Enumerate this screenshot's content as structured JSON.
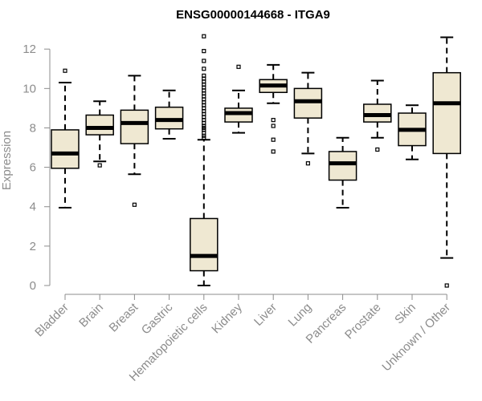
{
  "chart_data": {
    "type": "box",
    "title": "ENSG00000144668 - ITGA9",
    "ylabel": "Expression",
    "xlabel": "",
    "ylim": [
      0,
      12.7
    ],
    "yticks": [
      0,
      2,
      4,
      6,
      8,
      10,
      12
    ],
    "grid": false,
    "legend": "none",
    "colors": {
      "box_fill": "#efe8d2",
      "stroke": "#000000",
      "axis": "#8c8c8c",
      "title": "#000000"
    },
    "categories": [
      "Bladder",
      "Brain",
      "Breast",
      "Gastric",
      "Hematopoietic cells",
      "Kidney",
      "Liver",
      "Lung",
      "Pancreas",
      "Prostate",
      "Skin",
      "Unknown / Other"
    ],
    "boxes": [
      {
        "q1": 5.95,
        "median": 6.7,
        "q3": 7.9,
        "whisker_low": 3.95,
        "whisker_high": 10.3,
        "outliers": [
          10.9
        ]
      },
      {
        "q1": 7.65,
        "median": 8.0,
        "q3": 8.65,
        "whisker_low": 6.3,
        "whisker_high": 9.35,
        "outliers": [
          6.1
        ]
      },
      {
        "q1": 7.2,
        "median": 8.25,
        "q3": 8.9,
        "whisker_low": 5.65,
        "whisker_high": 10.65,
        "outliers": [
          4.1
        ]
      },
      {
        "q1": 7.95,
        "median": 8.4,
        "q3": 9.05,
        "whisker_low": 7.45,
        "whisker_high": 9.9,
        "outliers": []
      },
      {
        "q1": 0.75,
        "median": 1.5,
        "q3": 3.4,
        "whisker_low": 0.0,
        "whisker_high": 7.4,
        "outliers": [
          7.5,
          7.6,
          7.75,
          7.9,
          8.0,
          8.1,
          8.25,
          8.4,
          8.55,
          8.7,
          8.85,
          9.0,
          9.15,
          9.3,
          9.45,
          9.6,
          9.75,
          9.9,
          10.05,
          10.2,
          10.35,
          10.5,
          10.65,
          11.0,
          11.4,
          11.9,
          12.65
        ]
      },
      {
        "q1": 8.3,
        "median": 8.75,
        "q3": 9.0,
        "whisker_low": 7.75,
        "whisker_high": 9.9,
        "outliers": [
          11.1
        ]
      },
      {
        "q1": 9.8,
        "median": 10.15,
        "q3": 10.45,
        "whisker_low": 9.25,
        "whisker_high": 11.2,
        "outliers": [
          8.4,
          8.1,
          7.4,
          6.8
        ]
      },
      {
        "q1": 8.5,
        "median": 9.35,
        "q3": 10.0,
        "whisker_low": 6.7,
        "whisker_high": 10.8,
        "outliers": [
          6.2
        ]
      },
      {
        "q1": 5.35,
        "median": 6.2,
        "q3": 6.8,
        "whisker_low": 3.95,
        "whisker_high": 7.5,
        "outliers": []
      },
      {
        "q1": 8.3,
        "median": 8.65,
        "q3": 9.2,
        "whisker_low": 7.5,
        "whisker_high": 10.4,
        "outliers": [
          6.9
        ]
      },
      {
        "q1": 7.1,
        "median": 7.9,
        "q3": 8.75,
        "whisker_low": 6.4,
        "whisker_high": 9.15,
        "outliers": []
      },
      {
        "q1": 6.7,
        "median": 9.25,
        "q3": 10.8,
        "whisker_low": 1.4,
        "whisker_high": 12.6,
        "outliers": [
          0.0
        ]
      }
    ]
  }
}
